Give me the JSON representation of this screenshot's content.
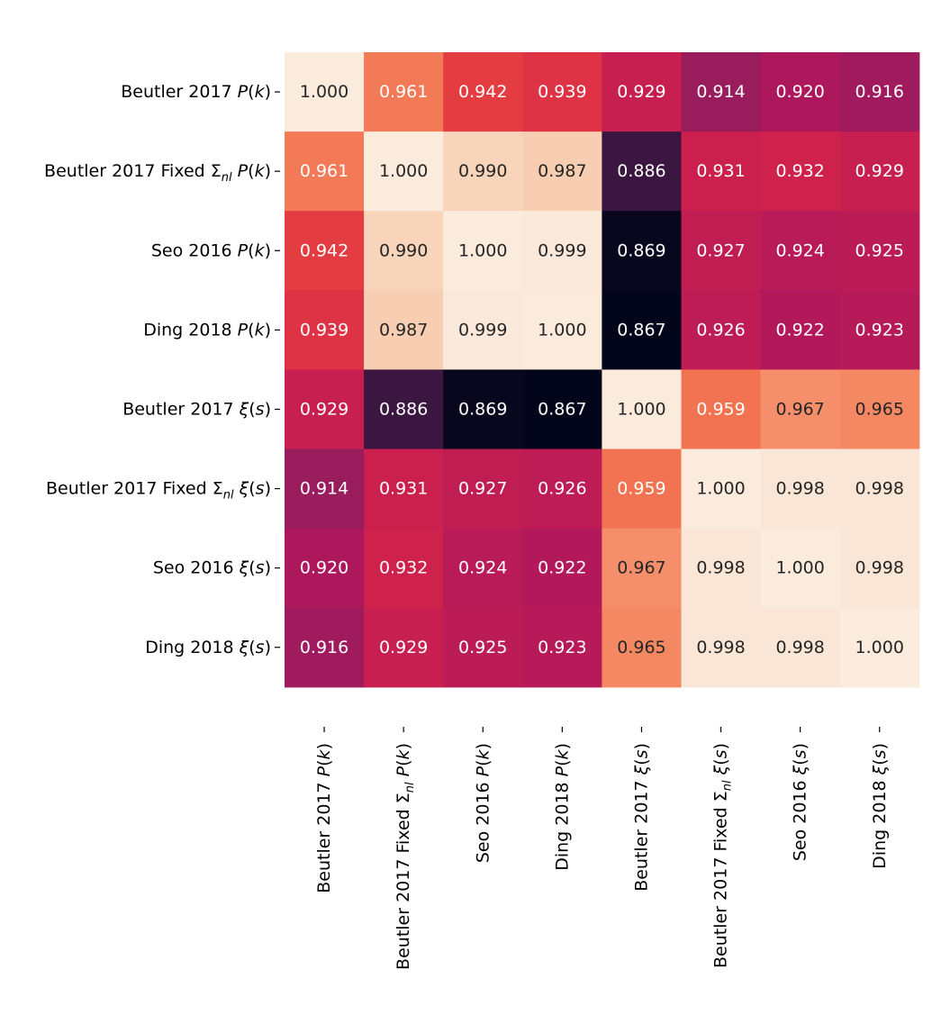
{
  "chart_data": {
    "type": "heatmap",
    "title": "",
    "xlabel": "",
    "ylabel": "",
    "colorbar": false,
    "colormap": "rocket",
    "vmin": 0.867,
    "vmax": 1.0,
    "labels": [
      [
        {
          "t": "Beutler 2017  "
        },
        {
          "t": "P",
          "i": true
        },
        {
          "t": "("
        },
        {
          "t": "k",
          "i": true
        },
        {
          "t": ")"
        }
      ],
      [
        {
          "t": "Beutler 2017 Fixed Σ"
        },
        {
          "t": "nl",
          "i": true,
          "sub": true
        },
        {
          "t": "  "
        },
        {
          "t": "P",
          "i": true
        },
        {
          "t": "("
        },
        {
          "t": "k",
          "i": true
        },
        {
          "t": ")"
        }
      ],
      [
        {
          "t": "Seo 2016  "
        },
        {
          "t": "P",
          "i": true
        },
        {
          "t": "("
        },
        {
          "t": "k",
          "i": true
        },
        {
          "t": ")"
        }
      ],
      [
        {
          "t": "Ding 2018  "
        },
        {
          "t": "P",
          "i": true
        },
        {
          "t": "("
        },
        {
          "t": "k",
          "i": true
        },
        {
          "t": ")"
        }
      ],
      [
        {
          "t": "Beutler 2017  "
        },
        {
          "t": "ξ",
          "i": true
        },
        {
          "t": "("
        },
        {
          "t": "s",
          "i": true
        },
        {
          "t": ")"
        }
      ],
      [
        {
          "t": "Beutler 2017 Fixed Σ"
        },
        {
          "t": "nl",
          "i": true,
          "sub": true
        },
        {
          "t": "  "
        },
        {
          "t": "ξ",
          "i": true
        },
        {
          "t": "("
        },
        {
          "t": "s",
          "i": true
        },
        {
          "t": ")"
        }
      ],
      [
        {
          "t": "Seo 2016  "
        },
        {
          "t": "ξ",
          "i": true
        },
        {
          "t": "("
        },
        {
          "t": "s",
          "i": true
        },
        {
          "t": ")"
        }
      ],
      [
        {
          "t": "Ding 2018  "
        },
        {
          "t": "ξ",
          "i": true
        },
        {
          "t": "("
        },
        {
          "t": "s",
          "i": true
        },
        {
          "t": ")"
        }
      ]
    ],
    "matrix": [
      [
        "1.000",
        "0.961",
        "0.942",
        "0.939",
        "0.929",
        "0.914",
        "0.920",
        "0.916"
      ],
      [
        "0.961",
        "1.000",
        "0.990",
        "0.987",
        "0.886",
        "0.931",
        "0.932",
        "0.929"
      ],
      [
        "0.942",
        "0.990",
        "1.000",
        "0.999",
        "0.869",
        "0.927",
        "0.924",
        "0.925"
      ],
      [
        "0.939",
        "0.987",
        "0.999",
        "1.000",
        "0.867",
        "0.926",
        "0.922",
        "0.923"
      ],
      [
        "0.929",
        "0.886",
        "0.869",
        "0.867",
        "1.000",
        "0.959",
        "0.967",
        "0.965"
      ],
      [
        "0.914",
        "0.931",
        "0.927",
        "0.926",
        "0.959",
        "1.000",
        "0.998",
        "0.998"
      ],
      [
        "0.920",
        "0.932",
        "0.924",
        "0.922",
        "0.967",
        "0.998",
        "1.000",
        "0.998"
      ],
      [
        "0.916",
        "0.929",
        "0.925",
        "0.923",
        "0.965",
        "0.998",
        "0.998",
        "1.000"
      ]
    ]
  }
}
